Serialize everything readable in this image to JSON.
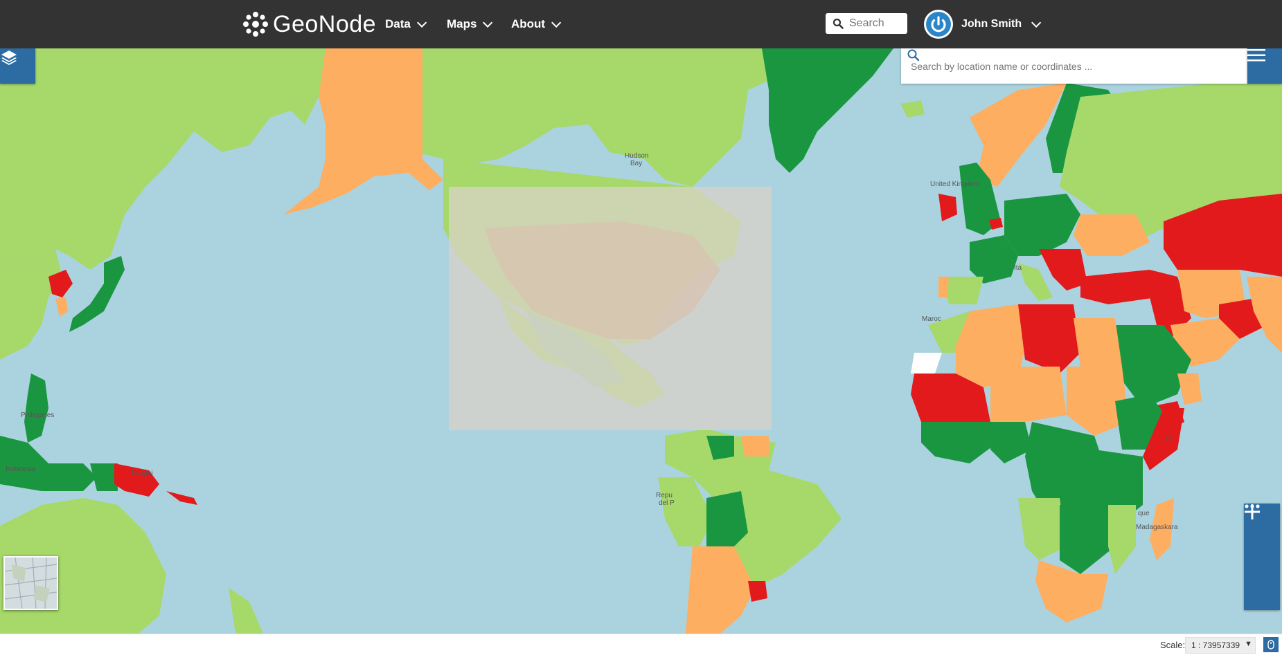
{
  "brand": {
    "name": "GeoNode"
  },
  "nav": {
    "items": [
      {
        "label": "Data"
      },
      {
        "label": "Maps"
      },
      {
        "label": "About"
      }
    ]
  },
  "header_search": {
    "placeholder": "Search"
  },
  "user": {
    "name": "John Smith"
  },
  "map_search": {
    "placeholder": "Search by location name or coordinates ..."
  },
  "map_labels": {
    "hudson": "Hudson",
    "bay": "Bay",
    "uk": "United Kingdom",
    "philippines": "Philippines",
    "indonesia": "Indonesia",
    "niugini": "Niugini",
    "maroc": "Maroc",
    "ita": "Ita",
    "repub": "Repu",
    "delp": "del P",
    "madagascar": "Madagaskara",
    "ya": "ya",
    "que": "que"
  },
  "footer": {
    "scale_label": "Scale:",
    "scale_value": "1 : 73957339"
  },
  "colors": {
    "header_bg": "#333333",
    "accent": "#2c6ca3",
    "ocean": "#aad3df",
    "class_red": "#e31a1c",
    "class_orange": "#fdae61",
    "class_lightgreen": "#a6d96a",
    "class_darkgreen": "#1a9641"
  },
  "icons": [
    "layers-icon",
    "search-icon",
    "menu-icon",
    "zoom-in-icon",
    "zoom-out-icon",
    "more-icon",
    "user-power-icon",
    "chevron-down-icon"
  ]
}
